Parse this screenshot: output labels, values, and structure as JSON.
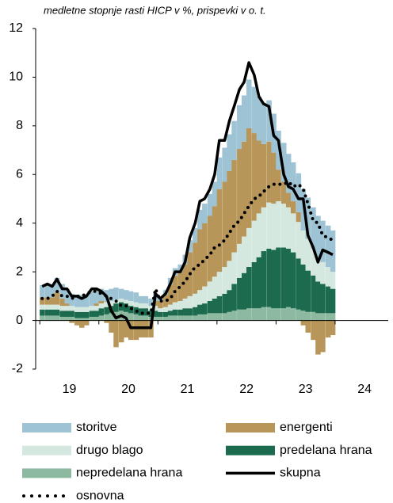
{
  "chart_data": {
    "type": "bar",
    "title": "medletne stopnje rasti HICP v %, prispevki v o. t.",
    "x": [
      2019.04,
      2019.13,
      2019.21,
      2019.29,
      2019.38,
      2019.46,
      2019.54,
      2019.63,
      2019.71,
      2019.79,
      2019.88,
      2019.96,
      2020.04,
      2020.13,
      2020.21,
      2020.29,
      2020.38,
      2020.46,
      2020.54,
      2020.63,
      2020.71,
      2020.79,
      2020.88,
      2020.96,
      2021.04,
      2021.13,
      2021.21,
      2021.29,
      2021.38,
      2021.46,
      2021.54,
      2021.63,
      2021.71,
      2021.79,
      2021.88,
      2021.96,
      2022.04,
      2022.13,
      2022.21,
      2022.29,
      2022.38,
      2022.46,
      2022.54,
      2022.63,
      2022.71,
      2022.79,
      2022.88,
      2022.96,
      2023.04,
      2023.13,
      2023.21,
      2023.29,
      2023.38,
      2023.46,
      2023.54,
      2023.63,
      2023.71,
      2023.79,
      2023.88,
      2023.96
    ],
    "xlim": [
      2018.93,
      2024.9
    ],
    "xticks": [
      {
        "value": 2019.5,
        "label": "19"
      },
      {
        "value": 2020.5,
        "label": "20"
      },
      {
        "value": 2021.5,
        "label": "21"
      },
      {
        "value": 2022.5,
        "label": "22"
      },
      {
        "value": 2023.5,
        "label": "23"
      },
      {
        "value": 2024.5,
        "label": "24"
      }
    ],
    "ylim": [
      -2,
      12
    ],
    "yticks": [
      -2,
      0,
      2,
      4,
      6,
      8,
      10,
      12
    ],
    "stacked": true,
    "series": [
      {
        "name": "storitve",
        "type": "bar",
        "color": "#9dc3d4",
        "values": [
          0.5,
          0.5,
          0.5,
          0.6,
          0.6,
          0.6,
          0.5,
          0.5,
          0.5,
          0.5,
          0.6,
          0.6,
          0.5,
          0.5,
          0.5,
          0.5,
          0.4,
          0.4,
          0.4,
          0.4,
          0.3,
          0.3,
          0.3,
          0.3,
          0.2,
          0.2,
          0.3,
          0.3,
          0.3,
          0.4,
          0.5,
          0.6,
          0.8,
          0.8,
          0.9,
          1.0,
          1.3,
          1.4,
          1.5,
          1.6,
          1.8,
          1.9,
          2.0,
          1.9,
          1.8,
          1.7,
          1.7,
          1.6,
          1.6,
          1.6,
          1.6,
          1.6,
          1.6,
          1.7,
          1.7,
          1.7,
          1.7,
          1.7,
          1.7,
          1.7
        ]
      },
      {
        "name": "energenti",
        "type": "bar",
        "color": "#b8965a",
        "values": [
          0.3,
          0.3,
          0.3,
          0.5,
          0.3,
          0.1,
          -0.1,
          -0.2,
          -0.3,
          -0.2,
          0,
          0.1,
          0.1,
          -0.1,
          -0.5,
          -1.1,
          -0.9,
          -0.7,
          -0.8,
          -0.8,
          -0.7,
          -0.7,
          -0.7,
          0.2,
          0.3,
          0.5,
          0.8,
          1.1,
          1.2,
          1.4,
          1.8,
          2.1,
          2.5,
          2.6,
          2.7,
          2.9,
          3.4,
          3.5,
          3.7,
          3.8,
          3.9,
          3.9,
          4.1,
          3.6,
          3.0,
          2.6,
          2.5,
          2.1,
          1.3,
          0.9,
          0.6,
          0.5,
          0.4,
          -0.2,
          -0.5,
          -0.8,
          -1.4,
          -1.3,
          -0.7,
          -0.6
        ]
      },
      {
        "name": "drugo blago",
        "type": "bar",
        "color": "#d5e8df",
        "values": [
          0.2,
          0.2,
          0.2,
          0.2,
          0.2,
          0.2,
          0.2,
          0.2,
          0.2,
          0.2,
          0.2,
          0.2,
          0.2,
          0.2,
          0.2,
          0.15,
          0.15,
          0.15,
          0.2,
          0.2,
          0.2,
          0.2,
          0.2,
          0.2,
          0.15,
          0.2,
          0.25,
          0.3,
          0.35,
          0.4,
          0.5,
          0.55,
          0.6,
          0.7,
          0.8,
          0.9,
          1.0,
          1.1,
          1.2,
          1.3,
          1.4,
          1.5,
          1.6,
          1.7,
          1.8,
          1.8,
          1.9,
          1.9,
          1.9,
          1.8,
          1.7,
          1.6,
          1.5,
          1.4,
          1.3,
          1.1,
          1.0,
          0.9,
          0.8,
          0.7
        ]
      },
      {
        "name": "predelana hrana",
        "type": "bar",
        "color": "#1d6b4f",
        "values": [
          0.25,
          0.25,
          0.25,
          0.25,
          0.25,
          0.25,
          0.25,
          0.25,
          0.25,
          0.25,
          0.25,
          0.25,
          0.3,
          0.3,
          0.3,
          0.35,
          0.35,
          0.35,
          0.3,
          0.3,
          0.3,
          0.3,
          0.25,
          0.25,
          0.2,
          0.2,
          0.2,
          0.25,
          0.25,
          0.3,
          0.3,
          0.35,
          0.4,
          0.45,
          0.5,
          0.6,
          0.7,
          0.8,
          0.9,
          1.1,
          1.3,
          1.5,
          1.7,
          1.9,
          2.1,
          2.3,
          2.4,
          2.4,
          2.5,
          2.5,
          2.4,
          2.3,
          2.1,
          1.9,
          1.7,
          1.5,
          1.3,
          1.2,
          1.1,
          1.0
        ]
      },
      {
        "name": "nepredelana hrana",
        "type": "bar",
        "color": "#8db9a0",
        "values": [
          0.2,
          0.2,
          0.2,
          0.2,
          0.15,
          0.15,
          0.15,
          0.1,
          0.1,
          0.1,
          0.15,
          0.15,
          0.2,
          0.25,
          0.3,
          0.35,
          0.4,
          0.35,
          0.3,
          0.25,
          0.2,
          0.2,
          0.15,
          0.15,
          0.15,
          0.15,
          0.2,
          0.2,
          0.2,
          0.2,
          0.2,
          0.2,
          0.25,
          0.25,
          0.3,
          0.3,
          0.3,
          0.3,
          0.35,
          0.4,
          0.45,
          0.45,
          0.5,
          0.5,
          0.5,
          0.55,
          0.55,
          0.5,
          0.5,
          0.5,
          0.55,
          0.5,
          0.45,
          0.4,
          0.35,
          0.35,
          0.3,
          0.3,
          0.3,
          0.3
        ]
      },
      {
        "name": "skupna",
        "type": "line",
        "color": "#000000",
        "values": [
          1.4,
          1.5,
          1.4,
          1.7,
          1.3,
          1.3,
          1.0,
          1.0,
          0.9,
          1.0,
          1.3,
          1.3,
          1.2,
          1.0,
          0.4,
          0.1,
          0.2,
          0.1,
          -0.3,
          -0.3,
          -0.3,
          -0.3,
          -0.3,
          1.1,
          0.9,
          1.1,
          1.5,
          2.0,
          2.0,
          2.4,
          3.4,
          4.0,
          4.9,
          5.0,
          5.4,
          6.0,
          7.4,
          7.4,
          8.2,
          8.8,
          9.5,
          9.8,
          10.6,
          10.1,
          9.2,
          8.9,
          8.8,
          7.6,
          7.4,
          6.0,
          5.5,
          5.4,
          5.0,
          5.0,
          3.5,
          3.0,
          2.4,
          2.9,
          2.8,
          2.7
        ]
      },
      {
        "name": "osnovna",
        "type": "line",
        "linestyle": "dotted",
        "color": "#000000",
        "values": [
          0.9,
          0.9,
          1.0,
          1.2,
          1.0,
          1.0,
          0.9,
          1.0,
          1.0,
          1.1,
          1.2,
          1.2,
          1.1,
          1.0,
          0.9,
          0.8,
          0.6,
          0.6,
          0.5,
          0.4,
          0.3,
          0.3,
          0.3,
          1.3,
          0.8,
          0.8,
          0.9,
          1.2,
          1.4,
          1.6,
          1.9,
          2.2,
          2.3,
          2.5,
          2.7,
          3.0,
          3.1,
          3.3,
          3.6,
          3.9,
          4.1,
          4.4,
          4.7,
          5.0,
          5.1,
          5.3,
          5.5,
          5.6,
          5.6,
          5.6,
          5.7,
          5.5,
          5.6,
          5.4,
          4.8,
          4.1,
          4.0,
          3.5,
          3.4,
          3.3
        ]
      }
    ]
  }
}
